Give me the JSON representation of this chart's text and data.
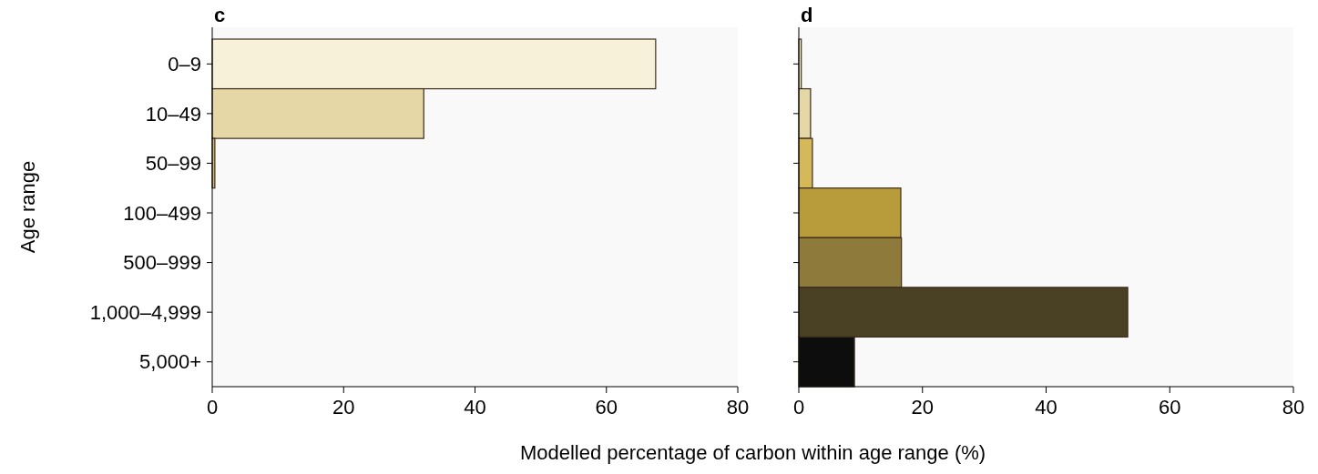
{
  "chart_data": [
    {
      "type": "bar",
      "orientation": "horizontal",
      "title": "c",
      "ylabel": "Age range",
      "xlabel": "Modelled percentage of carbon within age range (%)",
      "categories": [
        "0–9",
        "10–49",
        "50–99",
        "100–499",
        "500–999",
        "1,000–4,999",
        "5,000+"
      ],
      "values": [
        67.5,
        32.2,
        0.4,
        0,
        0,
        0,
        0
      ],
      "colors": [
        "#f8f1da",
        "#e5d7a6",
        "#d5bf78",
        "#b89b3a",
        "#8e7a3a",
        "#4a4023",
        "#0d0d0d"
      ],
      "xlim": [
        0,
        80
      ],
      "xticks": [
        0,
        20,
        40,
        60,
        80
      ]
    },
    {
      "type": "bar",
      "orientation": "horizontal",
      "title": "d",
      "categories": [
        null,
        null,
        null,
        null,
        null,
        null,
        null
      ],
      "values": [
        0.4,
        1.9,
        2.2,
        16.5,
        16.6,
        53.2,
        9.0
      ],
      "colors": [
        "#f8f1da",
        "#e5d7a6",
        "#d4b85a",
        "#b89b3a",
        "#8e7a3a",
        "#4a4023",
        "#0d0d0d"
      ],
      "xlim": [
        0,
        80
      ],
      "xticks": [
        0,
        20,
        40,
        60,
        80
      ],
      "tick_labels": "x"
    }
  ]
}
